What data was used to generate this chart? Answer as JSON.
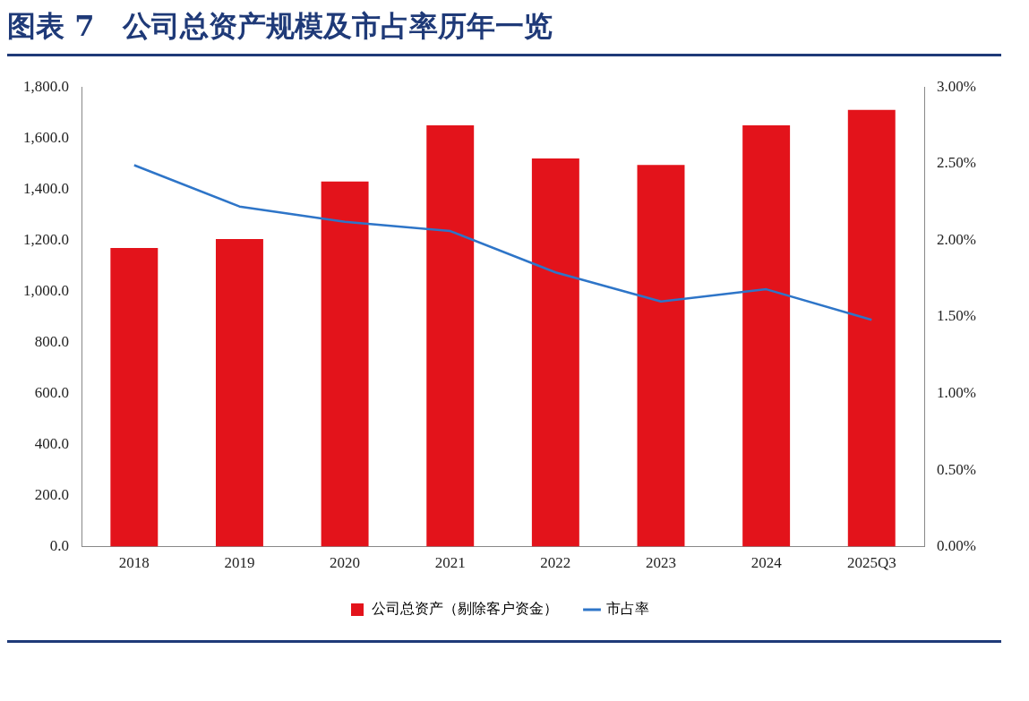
{
  "chart_data": {
    "type": "bar",
    "title": "图表 7　公司总资产规模及市占率历年一览",
    "categories": [
      "2018",
      "2019",
      "2020",
      "2021",
      "2022",
      "2023",
      "2024",
      "2025Q3"
    ],
    "series": [
      {
        "name": "公司总资产（剔除客户资金）",
        "color": "#e3131b",
        "values": [
          1170,
          1205,
          1430,
          1650,
          1520,
          1495,
          1650,
          1710
        ]
      },
      {
        "name": "市占率",
        "type": "line",
        "axis": "y2",
        "color": "#2e75c8",
        "values": [
          2.49,
          2.22,
          2.12,
          2.06,
          1.79,
          1.6,
          1.68,
          1.48
        ]
      }
    ],
    "ylim": [
      0,
      1800
    ],
    "yticks": [
      {
        "value": 0,
        "label": "0.0"
      },
      {
        "value": 200,
        "label": "200.0"
      },
      {
        "value": 400,
        "label": "400.0"
      },
      {
        "value": 600,
        "label": "600.0"
      },
      {
        "value": 800,
        "label": "800.0"
      },
      {
        "value": 1000,
        "label": "1,000.0"
      },
      {
        "value": 1200,
        "label": "1,200.0"
      },
      {
        "value": 1400,
        "label": "1,400.0"
      },
      {
        "value": 1600,
        "label": "1,600.0"
      },
      {
        "value": 1800,
        "label": "1,800.0"
      }
    ],
    "y2lim": [
      0,
      3
    ],
    "y2ticks": [
      {
        "value": 0,
        "label": "0.00%"
      },
      {
        "value": 0.5,
        "label": "0.50%"
      },
      {
        "value": 1,
        "label": "1.00%"
      },
      {
        "value": 1.5,
        "label": "1.50%"
      },
      {
        "value": 2,
        "label": "2.00%"
      },
      {
        "value": 2.5,
        "label": "2.50%"
      },
      {
        "value": 3,
        "label": "3.00%"
      }
    ],
    "grid": false,
    "legend": "bottom",
    "marker": "none",
    "line_style": "solid"
  }
}
